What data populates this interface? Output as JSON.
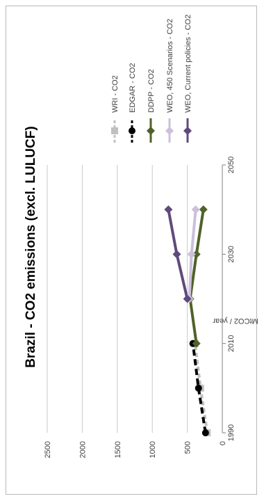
{
  "chart_data": {
    "type": "line",
    "title": "Brazil - CO2 emissions (excl. LULUCF)",
    "xlabel": "",
    "ylabel": "MtCO2 / year",
    "xlim": [
      1990,
      2050
    ],
    "ylim": [
      0,
      2500
    ],
    "xticks": [
      1990,
      2010,
      2030,
      2050
    ],
    "yticks": [
      0,
      500,
      1000,
      1500,
      2000,
      2500
    ],
    "grid": true,
    "orientation": "rotated-90-clockwise",
    "legend_position": "right",
    "series": [
      {
        "name": "WRI - CO2",
        "color": "#c0c0c0",
        "dash": "6,4",
        "marker": "square",
        "x": [
          1990,
          2000,
          2010
        ],
        "y": [
          215,
          310,
          390
        ]
      },
      {
        "name": "EDGAR - CO2",
        "color": "#000000",
        "dash": "9,5",
        "marker": "circle",
        "x": [
          1990,
          2000,
          2010
        ],
        "y": [
          240,
          340,
          420
        ]
      },
      {
        "name": "DDPP - CO2",
        "color": "#4f6228",
        "dash": "",
        "marker": "diamond",
        "x": [
          2010,
          2020,
          2030,
          2040
        ],
        "y": [
          370,
          460,
          370,
          270
        ]
      },
      {
        "name": "WEO, 450 Scenarios - CO2",
        "color": "#ccc0da",
        "dash": "",
        "marker": "diamond",
        "x": [
          2020,
          2030,
          2040
        ],
        "y": [
          470,
          440,
          380
        ]
      },
      {
        "name": "WEO, Current policies - CO2",
        "color": "#604a7b",
        "dash": "",
        "marker": "diamond",
        "x": [
          2020,
          2030,
          2040
        ],
        "y": [
          500,
          650,
          770
        ]
      }
    ]
  }
}
